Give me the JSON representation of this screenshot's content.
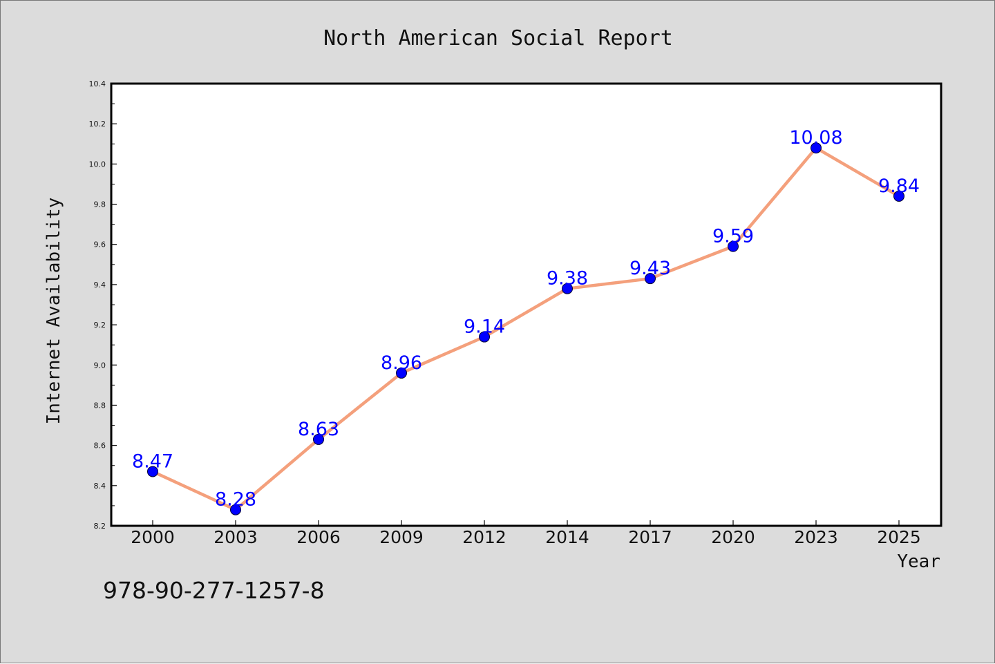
{
  "chart_data": {
    "type": "line",
    "title": "North American Social Report",
    "xlabel": "Year",
    "ylabel": "Internet Availability",
    "categories": [
      "2000",
      "2003",
      "2006",
      "2009",
      "2012",
      "2014",
      "2017",
      "2020",
      "2023",
      "2025"
    ],
    "series": [
      {
        "values": [
          8.47,
          8.28,
          8.63,
          8.96,
          9.14,
          9.38,
          9.43,
          9.59,
          10.08,
          9.84
        ],
        "line_color": "#f4a07c",
        "marker_color": "#0000ff"
      }
    ],
    "data_labels": [
      "8.47",
      "8.28",
      "8.63",
      "8.96",
      "9.14",
      "9.38",
      "9.43",
      "9.59",
      "10.08",
      "9.84"
    ],
    "ylim": [
      8.2,
      10.4
    ],
    "yticks": [
      "8.2",
      "8.4",
      "8.6",
      "8.8",
      "9.0",
      "9.2",
      "9.4",
      "9.6",
      "9.8",
      "10.0",
      "10.2",
      "10.4"
    ],
    "grid": false,
    "legend": "none",
    "data_label_color": "#0000ff",
    "background_color": "#dcdcdc",
    "plot_background_color": "#ffffff"
  },
  "footer": {
    "isbn": "978-90-277-1257-8"
  }
}
